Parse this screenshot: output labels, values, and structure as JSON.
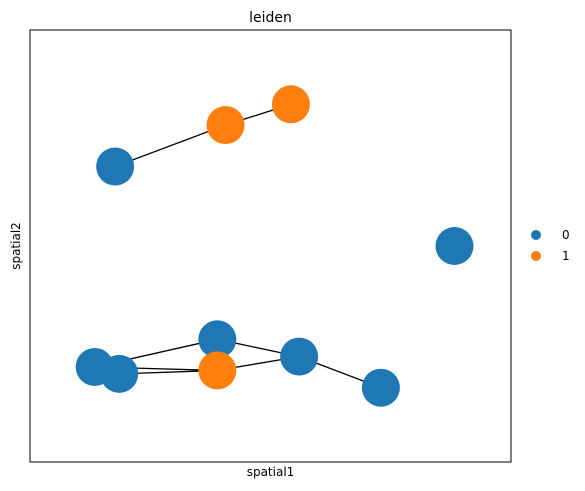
{
  "chart_data": {
    "type": "scatter",
    "title": "leiden",
    "xlabel": "spatial1",
    "ylabel": "spatial2",
    "ticks_visible": false,
    "legend_position": "right",
    "legend": [
      {
        "label": "0",
        "color": "#1f77b4"
      },
      {
        "label": "1",
        "color": "#ff7f0e"
      }
    ],
    "nodes": [
      {
        "id": "n1",
        "x": 0.12,
        "y": 0.73,
        "cluster": "0"
      },
      {
        "id": "n2",
        "x": 0.39,
        "y": 0.85,
        "cluster": "1"
      },
      {
        "id": "n3",
        "x": 0.55,
        "y": 0.91,
        "cluster": "1"
      },
      {
        "id": "n4",
        "x": 0.95,
        "y": 0.5,
        "cluster": "0"
      },
      {
        "id": "n5",
        "x": 0.37,
        "y": 0.23,
        "cluster": "0"
      },
      {
        "id": "n6",
        "x": 0.57,
        "y": 0.18,
        "cluster": "0"
      },
      {
        "id": "n7",
        "x": 0.07,
        "y": 0.15,
        "cluster": "0"
      },
      {
        "id": "n8",
        "x": 0.13,
        "y": 0.13,
        "cluster": "0"
      },
      {
        "id": "n9",
        "x": 0.37,
        "y": 0.14,
        "cluster": "1"
      },
      {
        "id": "n10",
        "x": 0.77,
        "y": 0.09,
        "cluster": "0"
      }
    ],
    "edges": [
      [
        "n1",
        "n2"
      ],
      [
        "n2",
        "n3"
      ],
      [
        "n7",
        "n5"
      ],
      [
        "n7",
        "n9"
      ],
      [
        "n8",
        "n9"
      ],
      [
        "n5",
        "n9"
      ],
      [
        "n5",
        "n6"
      ],
      [
        "n9",
        "n6"
      ],
      [
        "n6",
        "n10"
      ]
    ]
  }
}
